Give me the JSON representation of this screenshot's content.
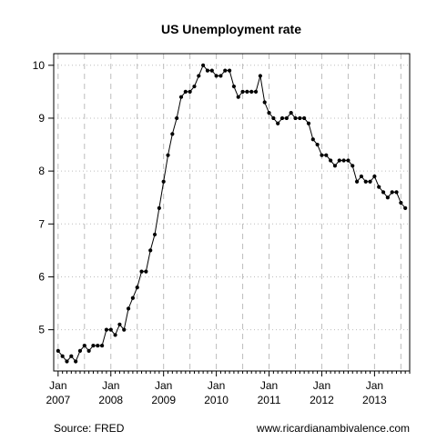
{
  "chart_data": {
    "type": "line",
    "title": "US Unemployment rate",
    "xlabel": "",
    "ylabel": "",
    "ylim": [
      4.22,
      10.22
    ],
    "xlim": [
      "2006-12",
      "2013-09"
    ],
    "y_ticks": [
      5,
      6,
      7,
      8,
      9,
      10
    ],
    "x_ticks": [
      {
        "month": "Jan",
        "year": "2007",
        "date": "2007-01"
      },
      {
        "month": "Jan",
        "year": "2008",
        "date": "2008-01"
      },
      {
        "month": "Jan",
        "year": "2009",
        "date": "2009-01"
      },
      {
        "month": "Jan",
        "year": "2010",
        "date": "2010-01"
      },
      {
        "month": "Jan",
        "year": "2011",
        "date": "2011-01"
      },
      {
        "month": "Jan",
        "year": "2012",
        "date": "2012-01"
      },
      {
        "month": "Jan",
        "year": "2013",
        "date": "2013-01"
      }
    ],
    "grid": true,
    "start": "2007-01",
    "y": [
      4.6,
      4.5,
      4.4,
      4.5,
      4.4,
      4.6,
      4.7,
      4.6,
      4.7,
      4.7,
      4.7,
      5.0,
      5.0,
      4.9,
      5.1,
      5.0,
      5.4,
      5.6,
      5.8,
      6.1,
      6.1,
      6.5,
      6.8,
      7.3,
      7.8,
      8.3,
      8.7,
      9.0,
      9.4,
      9.5,
      9.5,
      9.6,
      9.8,
      10.0,
      9.9,
      9.9,
      9.8,
      9.8,
      9.9,
      9.9,
      9.6,
      9.4,
      9.5,
      9.5,
      9.5,
      9.5,
      9.8,
      9.3,
      9.1,
      9.0,
      8.9,
      9.0,
      9.0,
      9.1,
      9.0,
      9.0,
      9.0,
      8.9,
      8.6,
      8.5,
      8.3,
      8.3,
      8.2,
      8.1,
      8.2,
      8.2,
      8.2,
      8.1,
      7.8,
      7.9,
      7.8,
      7.8,
      7.9,
      7.7,
      7.6,
      7.5,
      7.6,
      7.6,
      7.4,
      7.3
    ]
  },
  "footer": {
    "source": "Source: FRED",
    "site": "www.ricardianambivalence.com"
  }
}
